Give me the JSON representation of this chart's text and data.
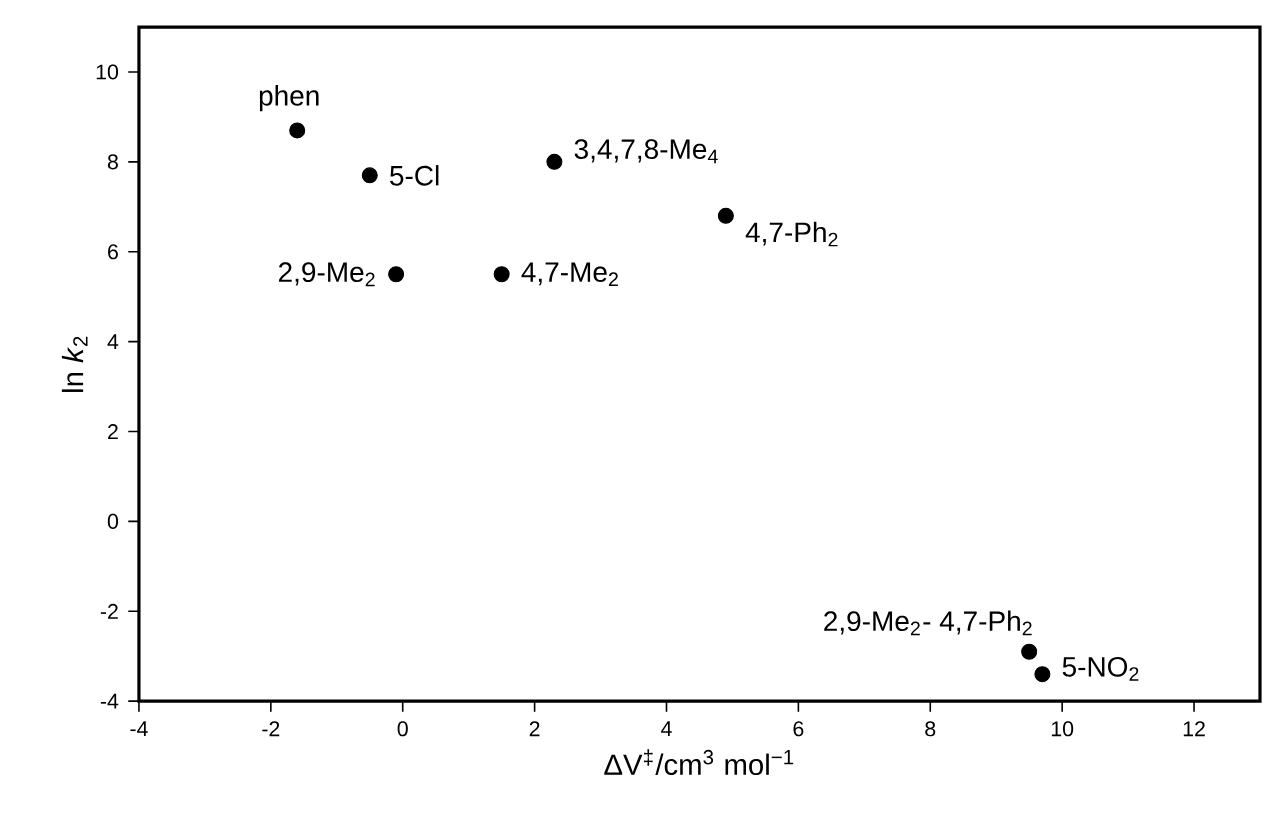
{
  "chart_data": {
    "type": "scatter",
    "xlabel": "ΔV$^{‡}$/cm$^{3}$ mol$^{−1}$",
    "ylabel": "ln *k*$_{2}$",
    "x": [
      -1.6,
      -0.5,
      2.3,
      -0.1,
      1.5,
      4.9,
      9.5,
      9.7
    ],
    "values": [
      8.7,
      7.7,
      8.0,
      5.5,
      5.5,
      6.8,
      -2.9,
      -3.4
    ],
    "color": "#000000",
    "marker": "circle",
    "xlim": [
      -4,
      13
    ],
    "xticks": [
      -4,
      -2,
      0,
      2,
      4,
      6,
      8,
      10,
      12
    ],
    "ylim": [
      -4,
      11
    ],
    "yticks": [
      -4,
      -2,
      0,
      2,
      4,
      6,
      8,
      10
    ],
    "grid": false,
    "annotations": [
      {
        "text": "phen",
        "x": -1.6,
        "y": 8.7
      },
      {
        "text": "5-Cl",
        "x": -0.5,
        "y": 7.7
      },
      {
        "text": "3,4,7,8-Me$_{4}$",
        "x": 2.3,
        "y": 8.0
      },
      {
        "text": "2,9-Me$_{2}$",
        "x": -0.1,
        "y": 5.5
      },
      {
        "text": "4,7-Me$_{2}$",
        "x": 1.5,
        "y": 5.5
      },
      {
        "text": "4,7-Ph$_{2}$",
        "x": 4.9,
        "y": 6.8
      },
      {
        "text": "2,9-Me$_{2}$- 4,7-Ph$_{2}$",
        "x": 9.5,
        "y": -2.9
      },
      {
        "text": "5-NO$_{2}$",
        "x": 9.7,
        "y": -3.4
      }
    ]
  }
}
